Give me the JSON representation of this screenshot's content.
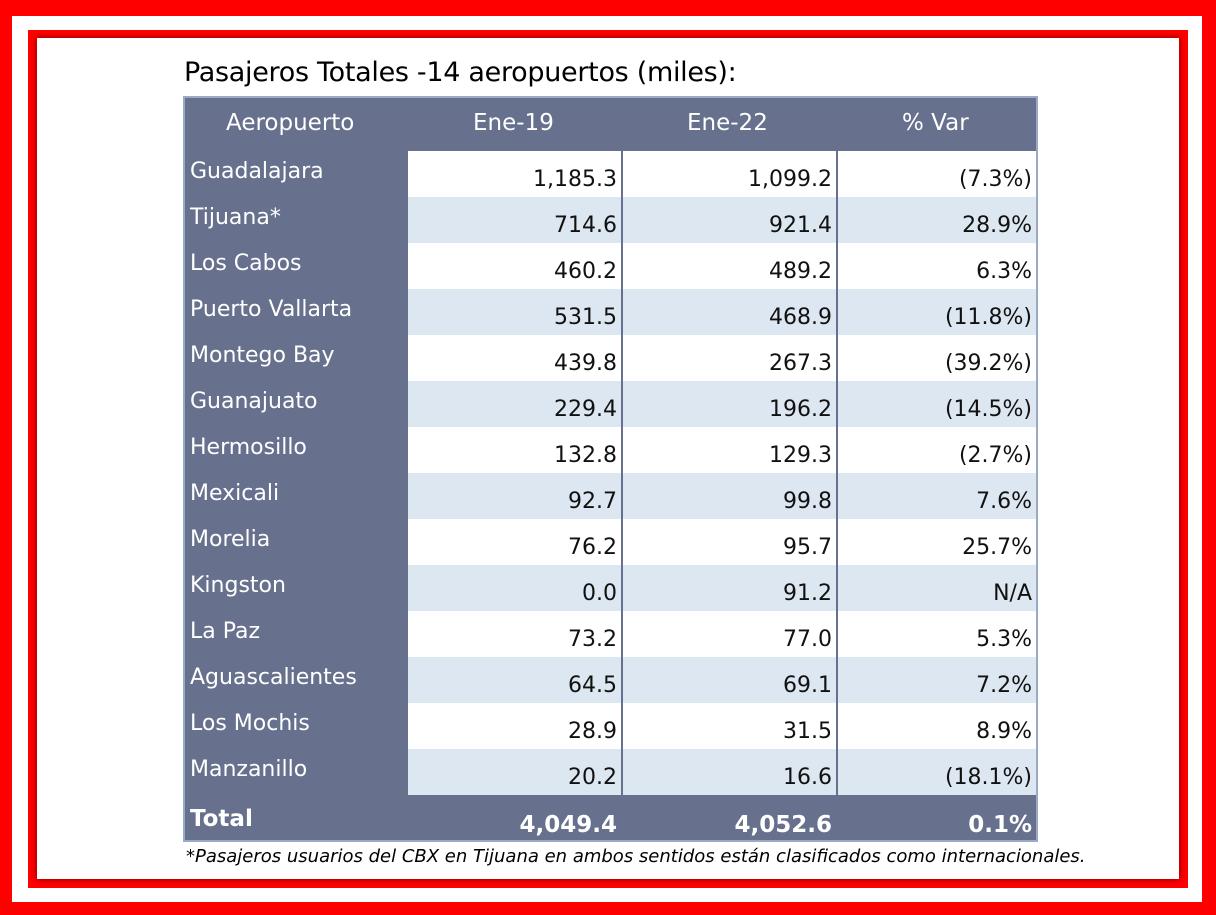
{
  "title": "Pasajeros Totales -14 aeropuertos (miles):",
  "headers": [
    "Aeropuerto",
    "Ene-19",
    "Ene-22",
    "% Var"
  ],
  "rows": [
    {
      "name": "Guadalajara",
      "ene19": "1,185.3",
      "ene22": "1,099.2",
      "var": "(7.3%)"
    },
    {
      "name": "Tijuana*",
      "ene19": "714.6",
      "ene22": "921.4",
      "var": "28.9%"
    },
    {
      "name": "Los Cabos",
      "ene19": "460.2",
      "ene22": "489.2",
      "var": "6.3%"
    },
    {
      "name": "Puerto Vallarta",
      "ene19": "531.5",
      "ene22": "468.9",
      "var": "(11.8%)"
    },
    {
      "name": "Montego Bay",
      "ene19": "439.8",
      "ene22": "267.3",
      "var": "(39.2%)"
    },
    {
      "name": "Guanajuato",
      "ene19": "229.4",
      "ene22": "196.2",
      "var": "(14.5%)"
    },
    {
      "name": "Hermosillo",
      "ene19": "132.8",
      "ene22": "129.3",
      "var": "(2.7%)"
    },
    {
      "name": "Mexicali",
      "ene19": "92.7",
      "ene22": "99.8",
      "var": "7.6%"
    },
    {
      "name": "Morelia",
      "ene19": "76.2",
      "ene22": "95.7",
      "var": "25.7%"
    },
    {
      "name": "Kingston",
      "ene19": "0.0",
      "ene22": "91.2",
      "var": "N/A"
    },
    {
      "name": "La Paz",
      "ene19": "73.2",
      "ene22": "77.0",
      "var": "5.3%"
    },
    {
      "name": "Aguascalientes",
      "ene19": "64.5",
      "ene22": "69.1",
      "var": "7.2%"
    },
    {
      "name": "Los Mochis",
      "ene19": "28.9",
      "ene22": "31.5",
      "var": "8.9%"
    },
    {
      "name": "Manzanillo",
      "ene19": "20.2",
      "ene22": "16.6",
      "var": "(18.1%)"
    }
  ],
  "total": {
    "label": "Total",
    "ene19": "4,049.4",
    "ene22": "4,052.6",
    "var": "0.1%"
  },
  "footnote": "*Pasajeros usuarios del CBX en Tijuana en ambos sentidos están clasificados como internacionales."
}
